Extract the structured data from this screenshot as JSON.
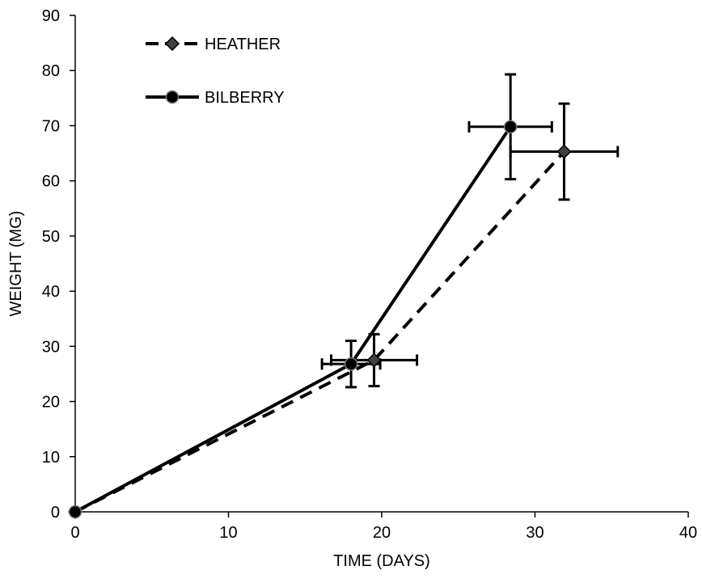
{
  "chart_data": {
    "type": "line",
    "xlabel": "TIME (DAYS)",
    "ylabel": "WEIGHT (MG)",
    "xlim": [
      0,
      40
    ],
    "ylim": [
      0,
      90
    ],
    "xticks": [
      0,
      10,
      20,
      30,
      40
    ],
    "yticks": [
      0,
      10,
      20,
      30,
      40,
      50,
      60,
      70,
      80,
      90
    ],
    "grid": false,
    "legend_position": "top-left",
    "series": [
      {
        "name": "HEATHER",
        "line_style": "dashed",
        "marker": "diamond",
        "color": "#000000",
        "marker_fill": "#404040",
        "points": [
          {
            "x": 0,
            "y": 0
          },
          {
            "x": 19.5,
            "y": 27.5,
            "x_err": 2.8,
            "y_err": 4.7
          },
          {
            "x": 31.9,
            "y": 65.3,
            "x_err": 3.5,
            "y_err": 8.7
          }
        ]
      },
      {
        "name": "BILBERRY",
        "line_style": "solid",
        "marker": "circle",
        "color": "#000000",
        "marker_fill": "#000000",
        "points": [
          {
            "x": 0,
            "y": 0
          },
          {
            "x": 18.0,
            "y": 26.8,
            "x_err": 1.9,
            "y_err": 4.2
          },
          {
            "x": 28.4,
            "y": 69.8,
            "x_err": 2.7,
            "y_err": 9.5
          }
        ]
      }
    ]
  }
}
